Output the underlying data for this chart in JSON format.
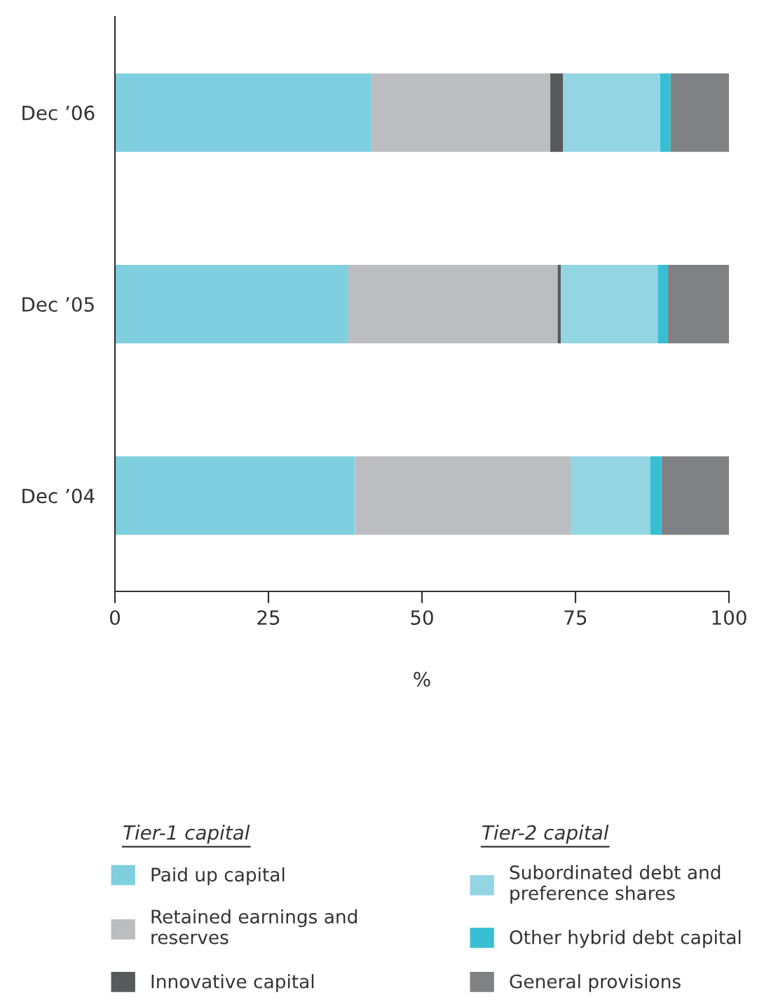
{
  "chart_data": {
    "type": "bar",
    "orientation": "horizontal",
    "stacked": true,
    "categories": [
      "Dec ’06",
      "Dec ’05",
      "Dec ’04"
    ],
    "series": [
      {
        "name": "Paid up capital",
        "color": "#7fcfdf",
        "values": [
          41.8,
          38.0,
          39.1
        ]
      },
      {
        "name": "Retained earnings and\nreserves",
        "color": "#bcbdc1",
        "values": [
          29.1,
          34.1,
          35.1
        ]
      },
      {
        "name": "Innovative capital",
        "color": "#58595b",
        "values": [
          2.1,
          0.5,
          0
        ]
      },
      {
        "name": "Subordinated debt and\npreference shares",
        "color": "#94d5e3",
        "values": [
          15.8,
          15.8,
          13.0
        ]
      },
      {
        "name": "Other hybrid debt capital",
        "color": "#38bfd4",
        "values": [
          1.7,
          1.6,
          1.8
        ]
      },
      {
        "name": "General provisions",
        "color": "#808184",
        "values": [
          9.5,
          10.0,
          11.0
        ]
      }
    ],
    "xlabel": "%",
    "xlim": [
      0,
      100
    ],
    "xticks": [
      0,
      25,
      50,
      75,
      100
    ],
    "annotations": [
      "Tier-1 capital",
      "Tier-2 capital"
    ],
    "grid": false,
    "legend": "bottom"
  }
}
